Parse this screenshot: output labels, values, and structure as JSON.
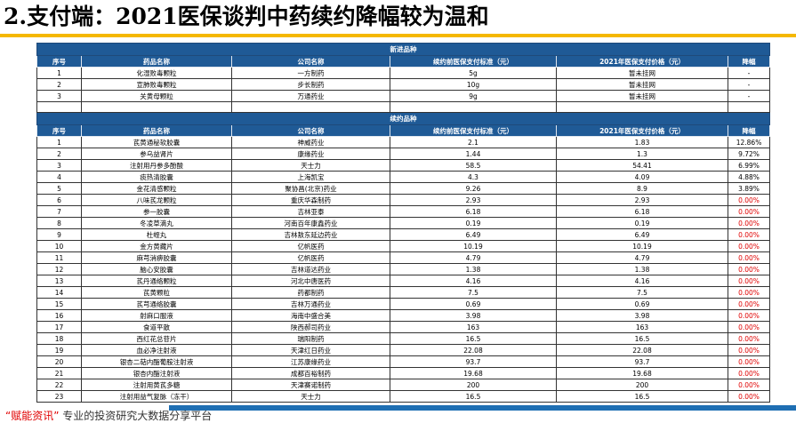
{
  "title": "2.支付端：2021医保谈判中药续约降幅较为温和",
  "headers": [
    "序号",
    "药品名称",
    "公司名称",
    "续约前医保支付标准（元）",
    "2021年医保支付价格（元）",
    "降幅"
  ],
  "section1": {
    "title": "新进品种",
    "rows": [
      [
        "1",
        "化湿败毒颗粒",
        "一方制药",
        "5g",
        "暂未挂网",
        "-"
      ],
      [
        "2",
        "宣肺败毒颗粒",
        "步长制药",
        "10g",
        "暂未挂网",
        "-"
      ],
      [
        "3",
        "关黄母颗粒",
        "万通药业",
        "9g",
        "暂未挂网",
        "-"
      ]
    ]
  },
  "section2": {
    "title": "续约品种",
    "rows": [
      [
        "1",
        "芪黄通秘软胶囊",
        "神威药业",
        "2.1",
        "1.83",
        "12.86%"
      ],
      [
        "2",
        "参乌益肾片",
        "康缘药业",
        "1.44",
        "1.3",
        "9.72%"
      ],
      [
        "3",
        "注射用丹参多酚酸",
        "天士力",
        "58.5",
        "54.41",
        "6.99%"
      ],
      [
        "4",
        "痰热清胶囊",
        "上海凯宝",
        "4.3",
        "4.09",
        "4.88%"
      ],
      [
        "5",
        "金花清感颗粒",
        "聚协昌(北京)药业",
        "9.26",
        "8.9",
        "3.89%"
      ],
      [
        "6",
        "八味芪龙颗粒",
        "重庆华森制药",
        "2.93",
        "2.93",
        "0.00%"
      ],
      [
        "7",
        "参一胶囊",
        "吉林亚泰",
        "6.18",
        "6.18",
        "0.00%"
      ],
      [
        "8",
        "冬凌草滴丸",
        "河南百年康鑫药业",
        "0.19",
        "0.19",
        "0.00%"
      ],
      [
        "9",
        "杜蛭丸",
        "吉林敖东延边药业",
        "6.49",
        "6.49",
        "0.00%"
      ],
      [
        "10",
        "金方黄藏片",
        "亿帆医药",
        "10.19",
        "10.19",
        "0.00%"
      ],
      [
        "11",
        "麻芎消痹胶囊",
        "亿帆医药",
        "4.79",
        "4.79",
        "0.00%"
      ],
      [
        "12",
        "脑心安胶囊",
        "吉林道达药业",
        "1.38",
        "1.38",
        "0.00%"
      ],
      [
        "13",
        "芪丹通络颗粒",
        "河北中唐医药",
        "4.16",
        "4.16",
        "0.00%"
      ],
      [
        "14",
        "芪黄颗粒",
        "药都制药",
        "7.5",
        "7.5",
        "0.00%"
      ],
      [
        "15",
        "芪芎通络胶囊",
        "吉林万通药业",
        "0.69",
        "0.69",
        "0.00%"
      ],
      [
        "16",
        "射麻口服液",
        "海南中盛合美",
        "3.98",
        "3.98",
        "0.00%"
      ],
      [
        "17",
        "食道平散",
        "陕西郝司药业",
        "163",
        "163",
        "0.00%"
      ],
      [
        "18",
        "西红花总苷片",
        "瑞阳制药",
        "16.5",
        "16.5",
        "0.00%"
      ],
      [
        "19",
        "血必净注射液",
        "天津红日药业",
        "22.08",
        "22.08",
        "0.00%"
      ],
      [
        "20",
        "银杏二萜内酯葡胺注射液",
        "江苏康缘药业",
        "93.7",
        "93.7",
        "0.00%"
      ],
      [
        "21",
        "银杏内酯注射液",
        "成都百裕制药",
        "19.68",
        "19.68",
        "0.00%"
      ],
      [
        "22",
        "注射用黄芪多糖",
        "天津赛诺制药",
        "200",
        "200",
        "0.00%"
      ],
      [
        "23",
        "注射用益气复脉（冻干）",
        "天士力",
        "16.5",
        "16.5",
        "0.00%"
      ]
    ]
  },
  "footer": {
    "quote": "“赋能资讯”",
    "text": " 专业的投资研究大数据分享平台"
  },
  "colors": {
    "header_bg": "#1f5a96",
    "accent": "#f5b800",
    "zero_decline": "#e00000"
  }
}
